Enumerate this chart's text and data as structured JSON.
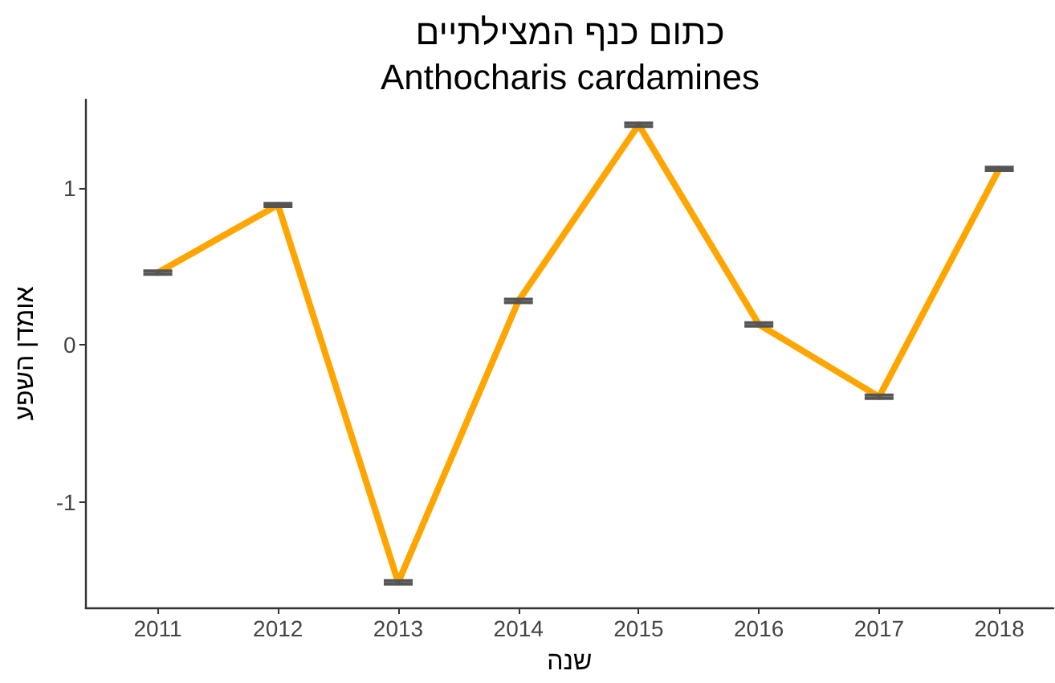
{
  "chart_data": {
    "type": "line",
    "title": "כתום כנף המצילתיים",
    "subtitle": "Anthocharis cardamines",
    "xlabel": "שנה",
    "ylabel": "אומדן השפע",
    "x": [
      2011,
      2012,
      2013,
      2014,
      2015,
      2016,
      2017,
      2018
    ],
    "series": [
      {
        "color": "#ffa500",
        "values": [
          0.46,
          0.89,
          -1.51,
          0.28,
          1.4,
          0.13,
          -0.33,
          1.12
        ],
        "errors": [
          0.01,
          0.01,
          0.01,
          0.01,
          0.01,
          0.01,
          0.01,
          0.01
        ]
      }
    ],
    "xlim": [
      2010.4,
      2018.45
    ],
    "ylim": [
      -1.67,
      1.56
    ],
    "xticks": [
      2011,
      2012,
      2013,
      2014,
      2015,
      2016,
      2017,
      2018
    ],
    "yticks": [
      -1,
      0,
      1
    ],
    "grid": false,
    "marker": "none",
    "line_style": "solid"
  }
}
